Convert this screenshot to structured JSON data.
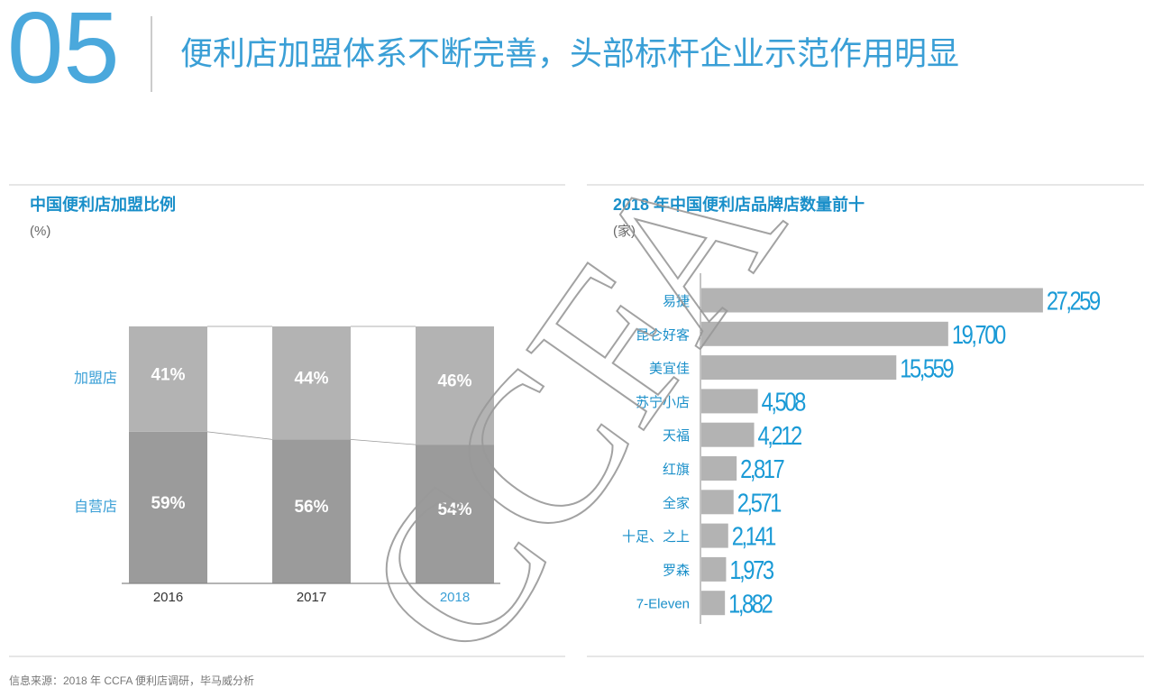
{
  "header": {
    "number": "05",
    "title": "便利店加盟体系不断完善，头部标杆企业示范作用明显"
  },
  "watermark": "CCFA",
  "source": "信息来源：2018 年 CCFA 便利店调研，毕马威分析",
  "chart_data": [
    {
      "type": "bar",
      "stacked": true,
      "title": "中国便利店加盟比例",
      "subtitle": "(%)",
      "categories": [
        "2016",
        "2017",
        "2018"
      ],
      "category_colors": [
        "#333333",
        "#333333",
        "#3a9fd6"
      ],
      "series": [
        {
          "name": "加盟店",
          "color": "#b3b3b3",
          "values": [
            41,
            44,
            46
          ],
          "value_labels": [
            "41%",
            "44%",
            "46%"
          ]
        },
        {
          "name": "自营店",
          "color": "#9b9b9b",
          "values": [
            59,
            56,
            54
          ],
          "value_labels": [
            "59%",
            "56%",
            "54%"
          ]
        }
      ],
      "ylim": [
        0,
        100
      ]
    },
    {
      "type": "bar",
      "orientation": "horizontal",
      "title": "2018 年中国便利店品牌店数量前十",
      "subtitle": "(家)",
      "categories": [
        "易捷",
        "昆仑好客",
        "美宜佳",
        "苏宁小店",
        "天福",
        "红旗",
        "全家",
        "十足、之上",
        "罗森",
        "7-Eleven"
      ],
      "values": [
        27259,
        19700,
        15559,
        4508,
        4212,
        2817,
        2571,
        2141,
        1973,
        1882
      ],
      "value_labels": [
        "27,259",
        "19,700",
        "15,559",
        "4,508",
        "4,212",
        "2,817",
        "2,571",
        "2,141",
        "1,973",
        "1,882"
      ],
      "color": "#b3b3b3",
      "xlim": [
        0,
        30000
      ]
    }
  ]
}
